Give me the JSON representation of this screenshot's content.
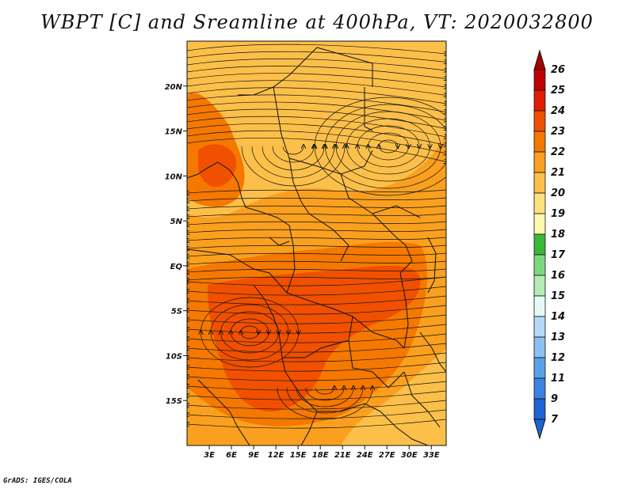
{
  "title": "WBPT [C] and Sreamline at 400hPa, VT: 2020032800",
  "footer": "GrADS: IGES/COLA",
  "map": {
    "lon_range": [
      0,
      35
    ],
    "lat_range": [
      -20,
      25
    ],
    "lat_ticks": [
      {
        "label": "20N",
        "value": 20
      },
      {
        "label": "15N",
        "value": 15
      },
      {
        "label": "10N",
        "value": 10
      },
      {
        "label": "5N",
        "value": 5
      },
      {
        "label": "EQ",
        "value": 0
      },
      {
        "label": "5S",
        "value": -5
      },
      {
        "label": "10S",
        "value": -10
      },
      {
        "label": "15S",
        "value": -15
      }
    ],
    "lon_ticks": [
      {
        "label": "3E",
        "value": 3
      },
      {
        "label": "6E",
        "value": 6
      },
      {
        "label": "9E",
        "value": 9
      },
      {
        "label": "12E",
        "value": 12
      },
      {
        "label": "15E",
        "value": 15
      },
      {
        "label": "18E",
        "value": 18
      },
      {
        "label": "21E",
        "value": 21
      },
      {
        "label": "24E",
        "value": 24
      },
      {
        "label": "27E",
        "value": 27
      },
      {
        "label": "30E",
        "value": 30
      },
      {
        "label": "33E",
        "value": 33
      }
    ]
  },
  "colorbar": {
    "levels": [
      {
        "label": "26",
        "color": "#a50000"
      },
      {
        "label": "25",
        "color": "#c00000"
      },
      {
        "label": "24",
        "color": "#e01e00"
      },
      {
        "label": "23",
        "color": "#f05000"
      },
      {
        "label": "22",
        "color": "#f57800"
      },
      {
        "label": "21",
        "color": "#faa01e"
      },
      {
        "label": "20",
        "color": "#fcc04a"
      },
      {
        "label": "19",
        "color": "#fde080"
      },
      {
        "label": "18",
        "color": "#fff8b0"
      },
      {
        "label": "17",
        "color": "#39b839"
      },
      {
        "label": "16",
        "color": "#7dd87d"
      },
      {
        "label": "15",
        "color": "#b4ecb4"
      },
      {
        "label": "14",
        "color": "#e6f8f8"
      },
      {
        "label": "13",
        "color": "#b4d8f5"
      },
      {
        "label": "12",
        "color": "#8cc0f0"
      },
      {
        "label": "11",
        "color": "#5aa0e8"
      },
      {
        "label": "9",
        "color": "#3c82e0"
      },
      {
        "label": "7",
        "color": "#1e64d2"
      }
    ],
    "bottom_color": "#1e64d2"
  },
  "fields": {
    "colors": {
      "base": "#faa01e",
      "light": "#fcc04a",
      "mid": "#f57800",
      "warm": "#f05000",
      "hot": "#e01e00",
      "border": "#111111",
      "streamline": "#111111"
    }
  }
}
